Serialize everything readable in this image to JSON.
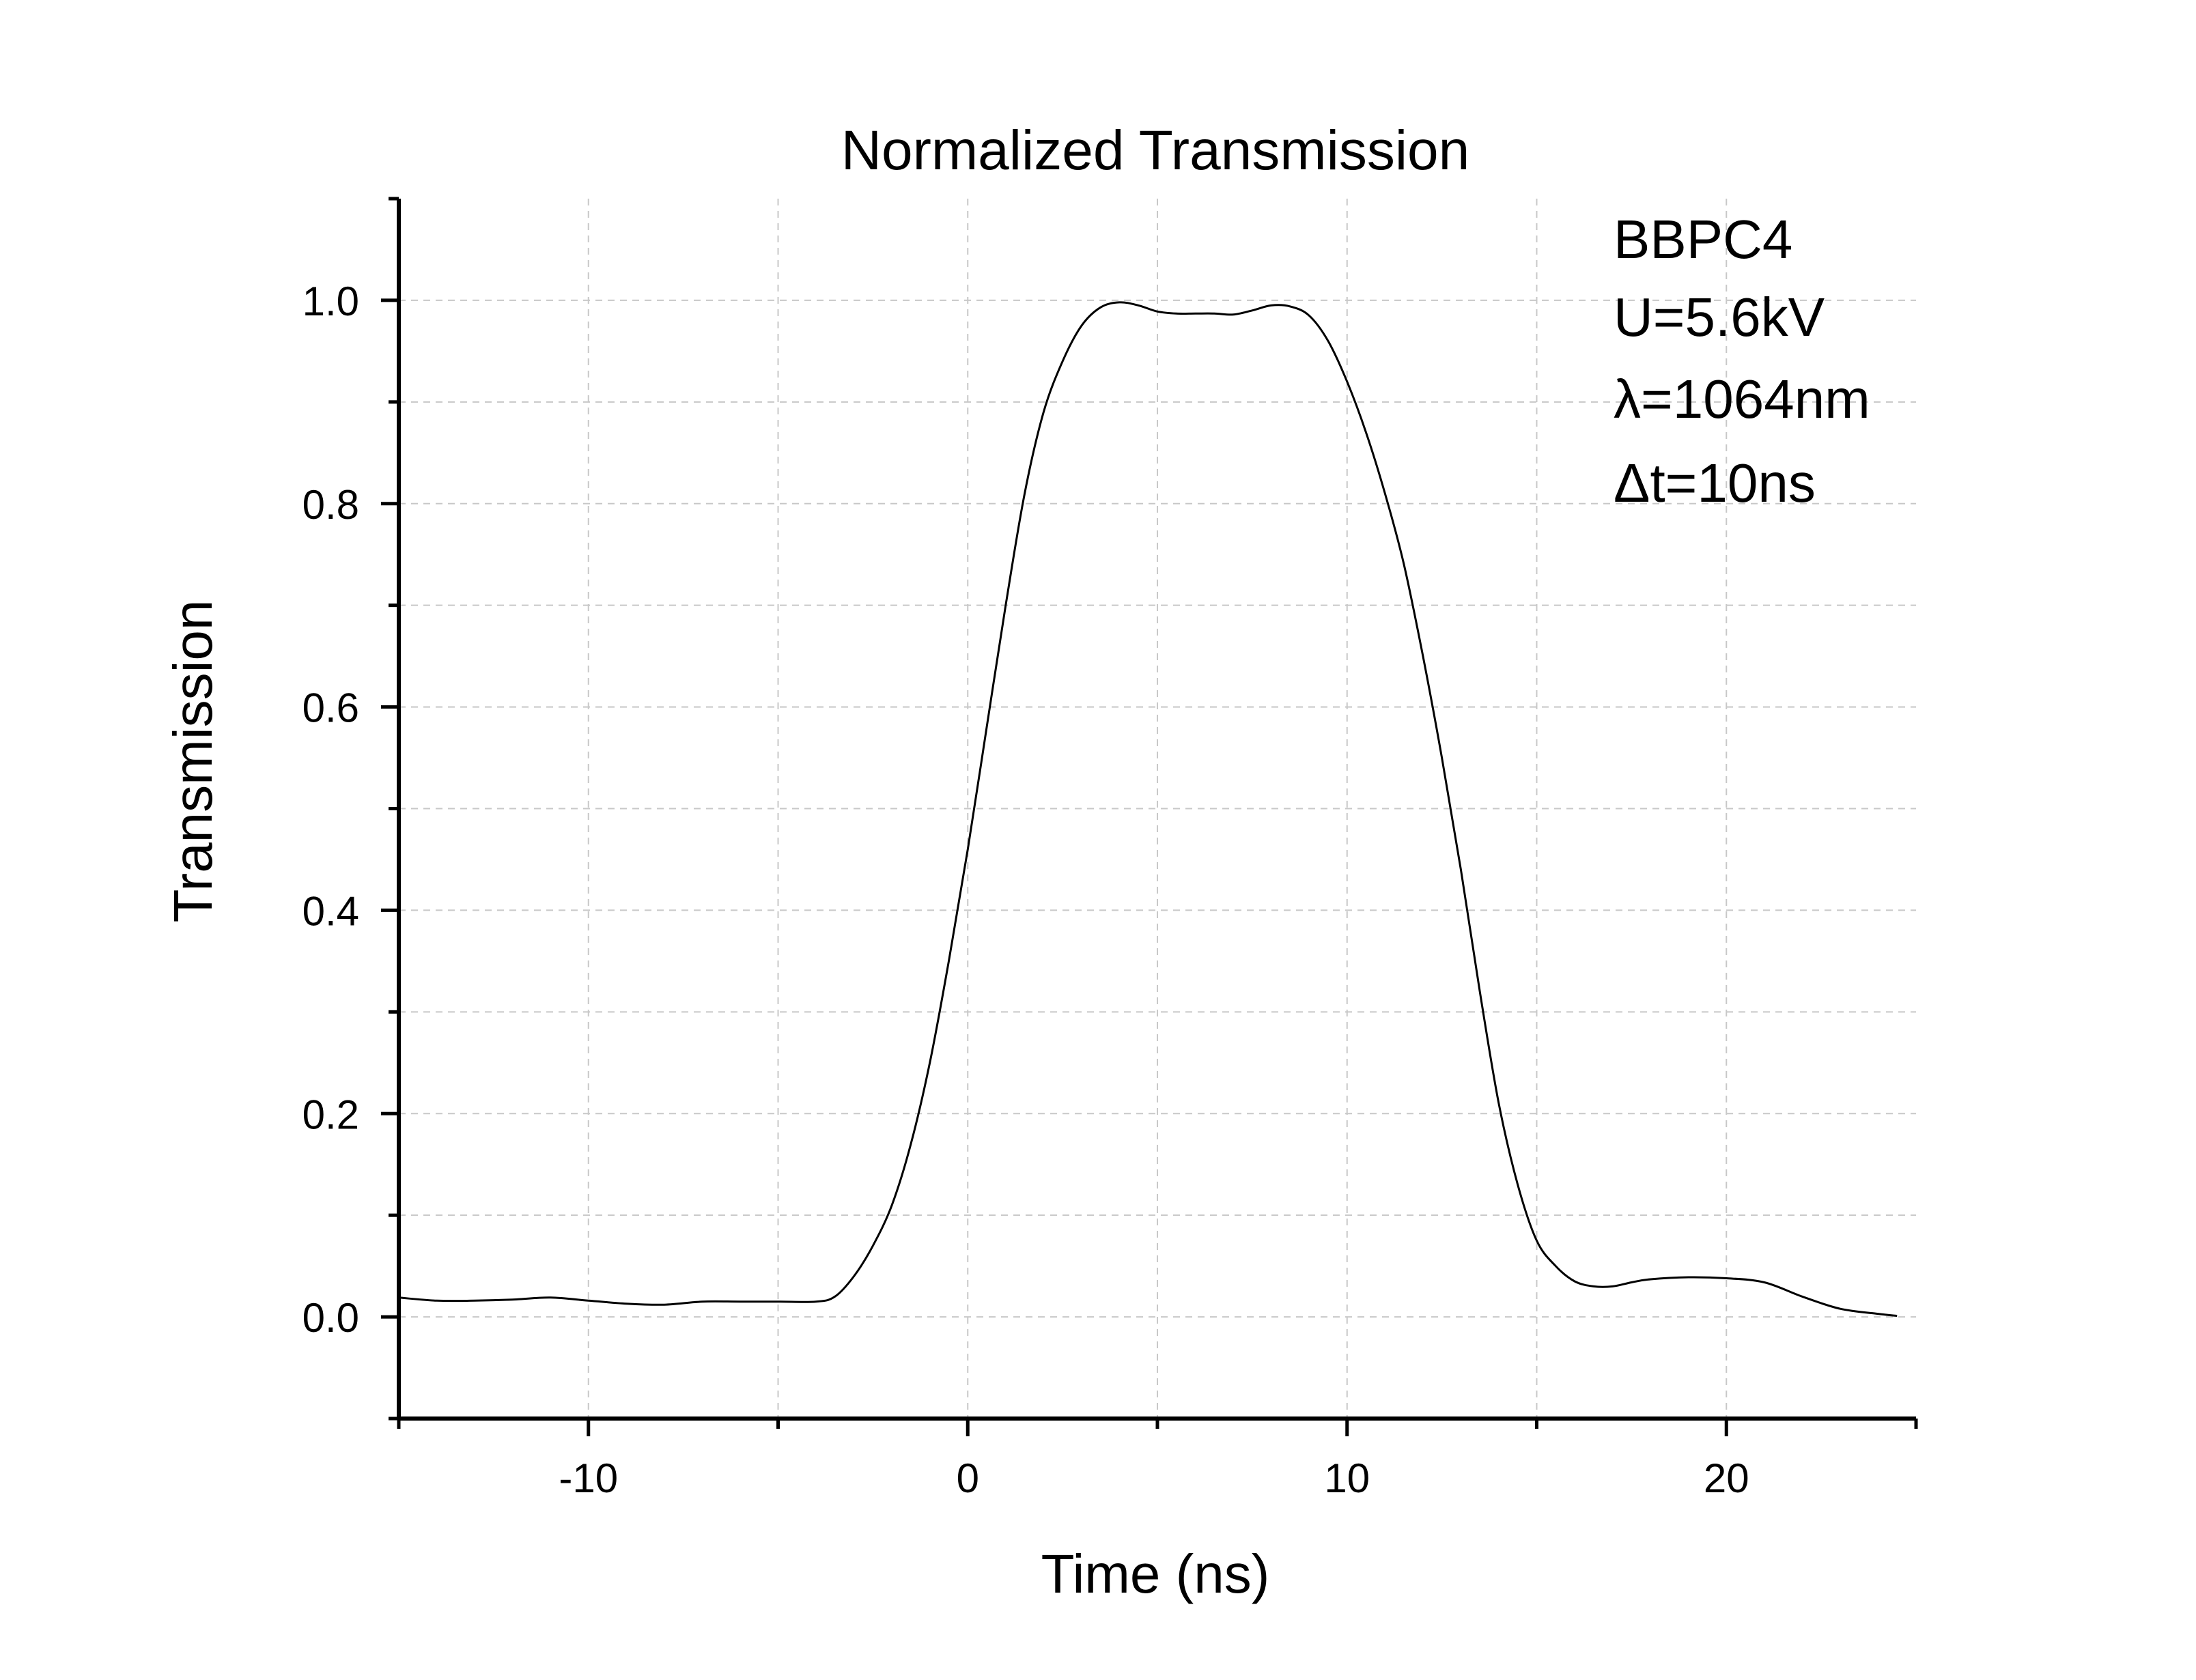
{
  "chart_data": {
    "type": "line",
    "title": "Normalized Transmission",
    "xlabel": "Time (ns)",
    "ylabel": "Transmission",
    "xlim": [
      -15,
      25
    ],
    "ylim": [
      -0.1,
      1.1
    ],
    "x_ticks": [
      -10,
      0,
      10,
      20
    ],
    "x_tick_labels": [
      "-10",
      "0",
      "10",
      "20"
    ],
    "x_minor_ticks": [
      -15,
      -5,
      5,
      15,
      25
    ],
    "y_ticks": [
      0.0,
      0.2,
      0.4,
      0.6,
      0.8,
      1.0
    ],
    "y_tick_labels": [
      "0.0",
      "0.2",
      "0.4",
      "0.6",
      "0.8",
      "1.0"
    ],
    "y_minor_ticks": [
      -0.1,
      0.1,
      0.3,
      0.5,
      0.7,
      0.9,
      1.1
    ],
    "grid": true,
    "annotations": [
      "BBPC4",
      "U=5.6kV",
      "λ=1064nm",
      "Δt=10ns"
    ],
    "series": [
      {
        "color": "#000000",
        "x": [
          -15,
          -14,
          -13,
          -12,
          -11,
          -10,
          -9,
          -8,
          -7,
          -6,
          -5,
          -4,
          -3.5,
          -3,
          -2.5,
          -2,
          -1.5,
          -1,
          -0.5,
          0,
          0.5,
          1,
          1.5,
          2,
          2.5,
          3,
          3.5,
          4,
          4.5,
          5,
          5.5,
          6,
          6.5,
          7,
          7.5,
          8,
          8.5,
          9,
          9.5,
          10,
          10.5,
          11,
          11.5,
          12,
          12.5,
          13,
          13.5,
          14,
          14.5,
          15,
          15.5,
          16,
          16.5,
          17,
          17.5,
          18,
          19,
          20,
          21,
          22,
          23,
          24,
          24.5
        ],
        "y": [
          0.019,
          0.016,
          0.016,
          0.017,
          0.019,
          0.016,
          0.013,
          0.012,
          0.015,
          0.015,
          0.015,
          0.015,
          0.02,
          0.04,
          0.07,
          0.11,
          0.17,
          0.25,
          0.35,
          0.46,
          0.58,
          0.7,
          0.81,
          0.89,
          0.94,
          0.975,
          0.993,
          0.998,
          0.995,
          0.989,
          0.987,
          0.987,
          0.987,
          0.986,
          0.99,
          0.995,
          0.994,
          0.985,
          0.96,
          0.92,
          0.87,
          0.81,
          0.74,
          0.65,
          0.55,
          0.44,
          0.32,
          0.21,
          0.13,
          0.075,
          0.05,
          0.035,
          0.03,
          0.03,
          0.034,
          0.037,
          0.039,
          0.038,
          0.034,
          0.02,
          0.008,
          0.003,
          0.001
        ]
      }
    ]
  }
}
